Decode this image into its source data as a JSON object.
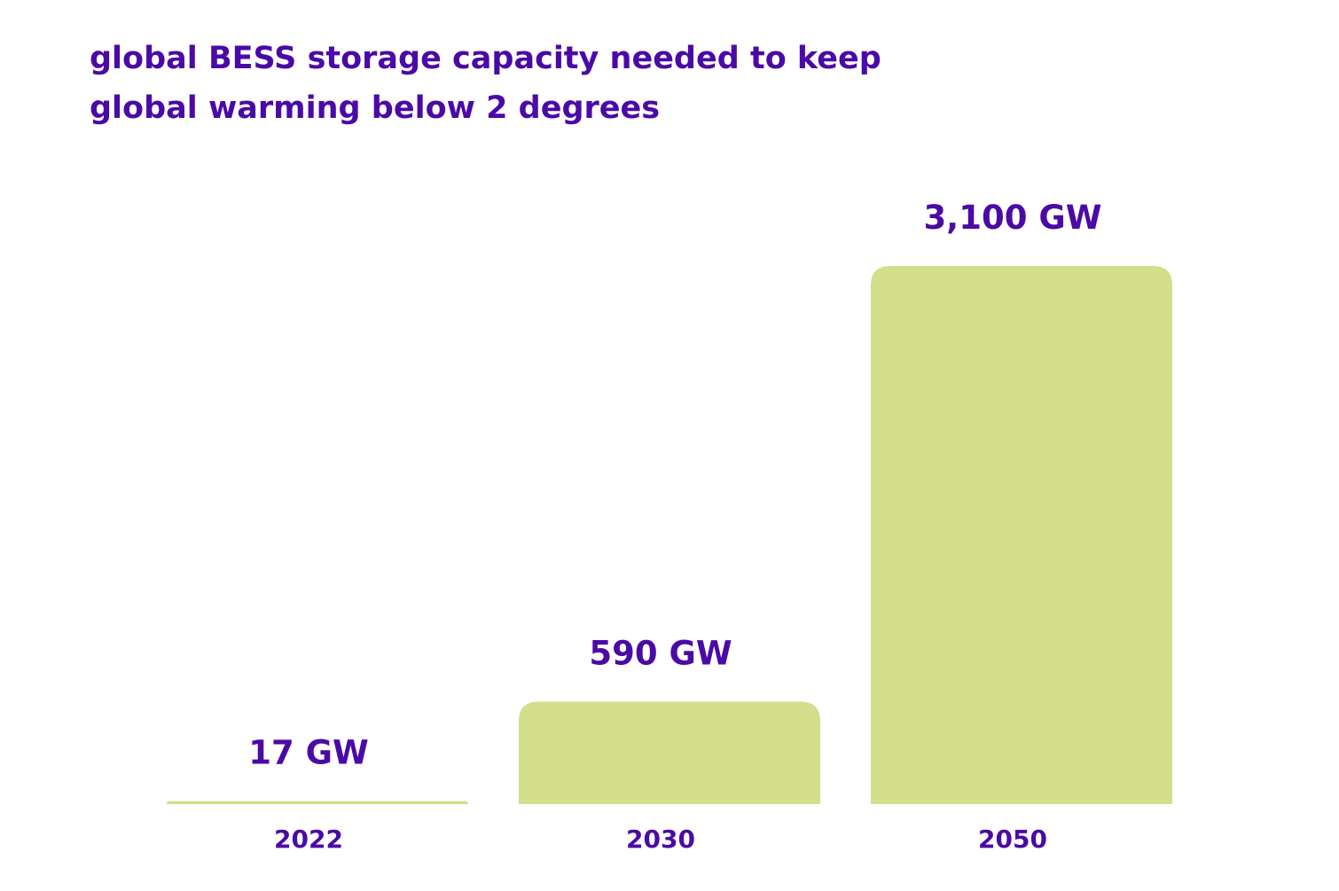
{
  "chart_data": {
    "type": "bar",
    "title": "global BESS storage capacity needed to keep global warming below 2 degrees",
    "categories": [
      "2022",
      "2030",
      "2050"
    ],
    "values": [
      17,
      590,
      3100
    ],
    "value_labels": [
      "17 GW",
      "590 GW",
      "3,100 GW"
    ],
    "unit": "GW",
    "xlabel": "",
    "ylabel": "",
    "ylim": [
      0,
      3100
    ],
    "grid": false,
    "legend": "none"
  },
  "colors": {
    "bar": "#d3df8a",
    "text": "#4b0aa6",
    "background": "#ffffff"
  }
}
